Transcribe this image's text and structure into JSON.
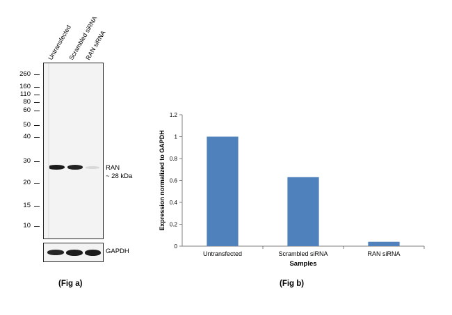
{
  "fig_a": {
    "lanes": [
      "Untransfected",
      "Scrambled siRNA",
      "RAN siRNA"
    ],
    "markers": [
      "260",
      "160",
      "110",
      "80",
      "60",
      "50",
      "40",
      "30",
      "20",
      "15",
      "10"
    ],
    "band_label": "RAN",
    "band_size": "~ 28 kDa",
    "loading_control": "GAPDH",
    "caption": "(Fig a)"
  },
  "fig_b": {
    "caption": "(Fig b)"
  },
  "chart_data": {
    "type": "bar",
    "categories": [
      "Untransfected",
      "Scrambled siRNA",
      "RAN siRNA"
    ],
    "values": [
      1.0,
      0.63,
      0.04
    ],
    "xlabel": "Samples",
    "ylabel": "Expression  normalized to GAPDH",
    "ylim": [
      0,
      1.2
    ],
    "yticks": [
      "0",
      "0.2",
      "0.4",
      "0.6",
      "0.8",
      "1",
      "1.2"
    ],
    "bar_color": "#4f81bd",
    "grid": false
  }
}
